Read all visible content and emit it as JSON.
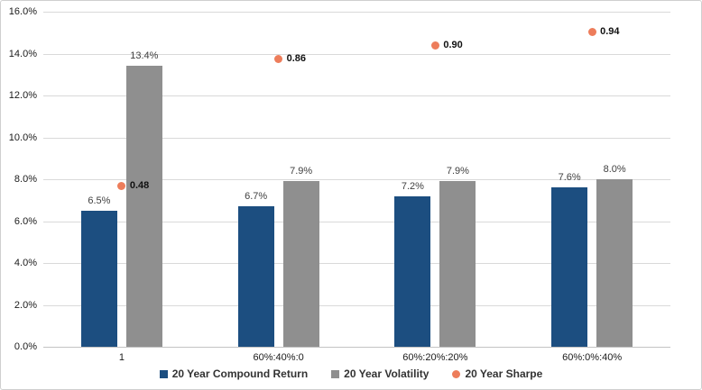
{
  "chart_data": {
    "type": "combo-bar-scatter",
    "title": "",
    "categories": [
      "1",
      "60%:40%:0",
      "60%:20%:20%",
      "60%:0%:40%"
    ],
    "series": [
      {
        "name": "20 Year Compound Return",
        "type": "bar",
        "color": "#1C4E80",
        "values": [
          6.5,
          6.7,
          7.2,
          7.6
        ],
        "labels": [
          "6.5%",
          "6.7%",
          "7.2%",
          "7.6%"
        ]
      },
      {
        "name": "20 Year Volatility",
        "type": "bar",
        "color": "#8F8F8F",
        "values": [
          13.4,
          7.9,
          7.9,
          8.0
        ],
        "labels": [
          "13.4%",
          "7.9%",
          "7.9%",
          "8.0%"
        ]
      },
      {
        "name": "20 Year Sharpe",
        "type": "scatter",
        "color": "#ED7D5B",
        "values": [
          0.48,
          0.86,
          0.9,
          0.94
        ],
        "labels": [
          "0.48",
          "0.86",
          "0.90",
          "0.94"
        ],
        "plotted_on_percent_axis_scale": 16
      }
    ],
    "y_axis": {
      "min": 0,
      "max": 16,
      "step": 2,
      "tick_labels": [
        "0.0%",
        "2.0%",
        "4.0%",
        "6.0%",
        "8.0%",
        "10.0%",
        "12.0%",
        "14.0%",
        "16.0%"
      ]
    },
    "grid": true,
    "legend_position": "bottom",
    "colors": {
      "gridline": "#d9d9d9",
      "axis_line": "#c3c3c3",
      "bar_label": "#404040",
      "border": "#cfcfcf"
    }
  }
}
